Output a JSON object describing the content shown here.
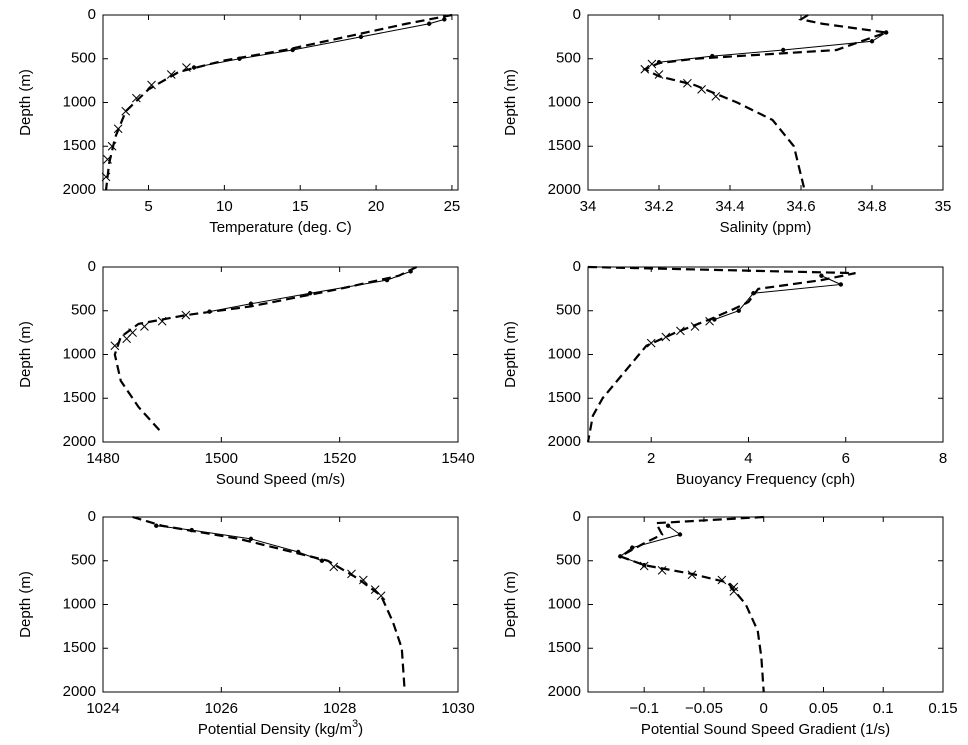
{
  "chart_data": [
    {
      "type": "line",
      "xlabel": "Temperature (deg. C)",
      "ylabel": "Depth (m)",
      "yinvert": true,
      "xlim": [
        2,
        25.4
      ],
      "xticks": [
        5,
        10,
        15,
        20,
        25
      ],
      "ylim": [
        0,
        2000
      ],
      "yticks": [
        0,
        500,
        1000,
        1500,
        2000
      ],
      "series": [
        {
          "color": "#000",
          "dash": "dashed",
          "marker": "none",
          "x": [
            25,
            22,
            18,
            14,
            10,
            7,
            5,
            3.5,
            2.8,
            2.4,
            2.2
          ],
          "values": [
            0,
            100,
            250,
            400,
            520,
            650,
            850,
            1100,
            1400,
            1700,
            2000
          ]
        },
        {
          "color": "#000",
          "dash": "solid",
          "marker": "dot",
          "x": [
            24.5,
            23.5,
            19,
            14.5,
            11,
            8
          ],
          "values": [
            50,
            100,
            250,
            400,
            500,
            600
          ]
        },
        {
          "color": "#000",
          "dash": "none",
          "marker": "cross",
          "x": [
            7.5,
            6.5,
            5.2,
            4.2,
            3.5,
            3,
            2.6,
            2.3,
            2.2
          ],
          "values": [
            600,
            680,
            800,
            950,
            1100,
            1300,
            1500,
            1650,
            1850
          ]
        }
      ]
    },
    {
      "type": "line",
      "xlabel": "Salinity (ppm)",
      "ylabel": "Depth (m)",
      "yinvert": true,
      "xlim": [
        34,
        35
      ],
      "xticks": [
        34,
        34.2,
        34.4,
        34.6,
        34.8,
        35
      ],
      "ylim": [
        0,
        2000
      ],
      "yticks": [
        0,
        500,
        1000,
        1500,
        2000
      ],
      "series": [
        {
          "color": "#000",
          "dash": "dashed",
          "marker": "none",
          "x": [
            34.62,
            34.6,
            34.66,
            34.84,
            34.7,
            34.3,
            34.2,
            34.16,
            34.2,
            34.3,
            34.42,
            34.52,
            34.58,
            34.61
          ],
          "values": [
            0,
            50,
            100,
            200,
            400,
            500,
            550,
            620,
            700,
            800,
            1000,
            1200,
            1500,
            2000
          ]
        },
        {
          "color": "#000",
          "dash": "solid",
          "marker": "dot",
          "x": [
            34.84,
            34.8,
            34.55,
            34.35,
            34.2
          ],
          "values": [
            200,
            300,
            400,
            470,
            540
          ]
        },
        {
          "color": "#000",
          "dash": "none",
          "marker": "cross",
          "x": [
            34.18,
            34.16,
            34.2,
            34.28,
            34.32,
            34.36
          ],
          "values": [
            560,
            620,
            680,
            780,
            850,
            930
          ]
        }
      ]
    },
    {
      "type": "line",
      "xlabel": "Sound Speed (m/s)",
      "ylabel": "Depth (m)",
      "yinvert": true,
      "xlim": [
        1480,
        1540
      ],
      "xticks": [
        1480,
        1500,
        1520,
        1540
      ],
      "ylim": [
        0,
        2000
      ],
      "yticks": [
        0,
        500,
        1000,
        1500,
        2000
      ],
      "series": [
        {
          "color": "#000",
          "dash": "dashed",
          "marker": "none",
          "x": [
            1533,
            1530,
            1520,
            1505,
            1494,
            1486,
            1483,
            1482,
            1483,
            1486,
            1490
          ],
          "values": [
            0,
            100,
            250,
            450,
            550,
            650,
            800,
            1000,
            1300,
            1600,
            1900
          ]
        },
        {
          "color": "#000",
          "dash": "solid",
          "marker": "dot",
          "x": [
            1532,
            1528,
            1515,
            1505,
            1498
          ],
          "values": [
            50,
            150,
            300,
            420,
            510
          ]
        },
        {
          "color": "#000",
          "dash": "none",
          "marker": "cross",
          "x": [
            1494,
            1490,
            1487,
            1485,
            1484,
            1482
          ],
          "values": [
            550,
            620,
            680,
            750,
            820,
            900
          ]
        }
      ]
    },
    {
      "type": "line",
      "xlabel": "Buoyancy Frequency (cph)",
      "ylabel": "Depth (m)",
      "yinvert": true,
      "xlim": [
        0.7,
        8
      ],
      "xticks": [
        2,
        4,
        6,
        8
      ],
      "ylim": [
        0,
        2000
      ],
      "yticks": [
        0,
        500,
        1000,
        1500,
        2000
      ],
      "series": [
        {
          "color": "#000",
          "dash": "dashed",
          "marker": "none",
          "x": [
            0.7,
            6.2,
            5.5,
            4.2,
            4,
            3.7,
            3.2,
            2.5,
            1.9,
            1.6,
            1.3,
            1,
            0.8,
            0.7
          ],
          "values": [
            0,
            70,
            150,
            250,
            400,
            480,
            600,
            750,
            900,
            1100,
            1300,
            1500,
            1700,
            2000
          ]
        },
        {
          "color": "#000",
          "dash": "solid",
          "marker": "dot",
          "x": [
            5.5,
            5.9,
            4.1,
            3.8,
            3.3
          ],
          "values": [
            100,
            200,
            300,
            500,
            600
          ]
        },
        {
          "color": "#000",
          "dash": "none",
          "marker": "cross",
          "x": [
            3.2,
            2.9,
            2.6,
            2.3,
            2
          ],
          "values": [
            620,
            680,
            730,
            800,
            870
          ]
        }
      ]
    },
    {
      "type": "line",
      "xlabel": "Potential Density (kg/m",
      "xlabel_sup": "3",
      "xlabel_end": ")",
      "ylabel": "Depth (m)",
      "yinvert": true,
      "xlim": [
        1024,
        1030
      ],
      "xticks": [
        1024,
        1026,
        1028,
        1030
      ],
      "ylim": [
        0,
        2000
      ],
      "yticks": [
        0,
        500,
        1000,
        1500,
        2000
      ],
      "series": [
        {
          "color": "#000",
          "dash": "dashed",
          "marker": "none",
          "x": [
            1024.5,
            1025,
            1026.3,
            1027.2,
            1027.8,
            1028.3,
            1028.7,
            1028.9,
            1029.05,
            1029.1
          ],
          "values": [
            0,
            100,
            250,
            400,
            500,
            700,
            900,
            1200,
            1500,
            2000
          ]
        },
        {
          "color": "#000",
          "dash": "solid",
          "marker": "dot",
          "x": [
            1024.9,
            1025.5,
            1026.5,
            1027.3,
            1027.7
          ],
          "values": [
            100,
            150,
            250,
            400,
            500
          ]
        },
        {
          "color": "#000",
          "dash": "none",
          "marker": "cross",
          "x": [
            1027.9,
            1028.2,
            1028.4,
            1028.6,
            1028.7
          ],
          "values": [
            570,
            650,
            720,
            830,
            900
          ]
        }
      ]
    },
    {
      "type": "line",
      "xlabel": "Potential Sound Speed Gradient (1/s)",
      "ylabel": "Depth (m)",
      "yinvert": true,
      "xlim": [
        -0.147,
        0.15
      ],
      "xticks": [
        {
          "value": -0.1,
          "label": "−0.1"
        },
        {
          "value": -0.05,
          "label": "−0.05"
        },
        0,
        0.05,
        0.1,
        0.15
      ],
      "ylim": [
        0,
        2000
      ],
      "yticks": [
        0,
        500,
        1000,
        1500,
        2000
      ],
      "series": [
        {
          "color": "#000",
          "dash": "dashed",
          "marker": "none",
          "x": [
            0,
            -0.09,
            -0.085,
            -0.1,
            -0.12,
            -0.1,
            -0.06,
            -0.03,
            -0.015,
            -0.005,
            -0.002,
            0
          ],
          "values": [
            0,
            70,
            200,
            300,
            450,
            550,
            650,
            750,
            1000,
            1300,
            1600,
            2000
          ]
        },
        {
          "color": "#000",
          "dash": "solid",
          "marker": "dot",
          "x": [
            -0.08,
            -0.07,
            -0.11,
            -0.12,
            -0.1
          ],
          "values": [
            100,
            200,
            350,
            450,
            550
          ]
        },
        {
          "color": "#000",
          "dash": "none",
          "marker": "cross",
          "x": [
            -0.1,
            -0.085,
            -0.06,
            -0.035,
            -0.025,
            -0.025
          ],
          "values": [
            560,
            610,
            660,
            720,
            800,
            850
          ]
        }
      ]
    }
  ]
}
